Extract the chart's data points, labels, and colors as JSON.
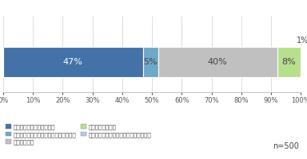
{
  "segments": [
    {
      "label": "石鹻・ハンドソープで洗う",
      "value": 47,
      "color": "#4472a8"
    },
    {
      "label": "キッチン用の石鹻・ハンドソープで洗う",
      "value": 5,
      "color": "#6fa8c8"
    },
    {
      "label": "水だけで洗う",
      "value": 40,
      "color": "#c0c0c0"
    },
    {
      "label": "食器用洗剤で洗う",
      "value": 8,
      "color": "#b8e08c"
    },
    {
      "label": "当てはまるものはない（手を洗わない）",
      "value": 1,
      "color": "#b8cce4"
    }
  ],
  "annotation_1pct": "1%",
  "note": "n=500",
  "xlim": [
    0,
    100
  ],
  "xticks": [
    0,
    10,
    20,
    30,
    40,
    50,
    60,
    70,
    80,
    90,
    100
  ],
  "bar_height": 0.55,
  "background_color": "#ffffff",
  "text_color": "#444444",
  "grid_color": "#d0d0d0"
}
